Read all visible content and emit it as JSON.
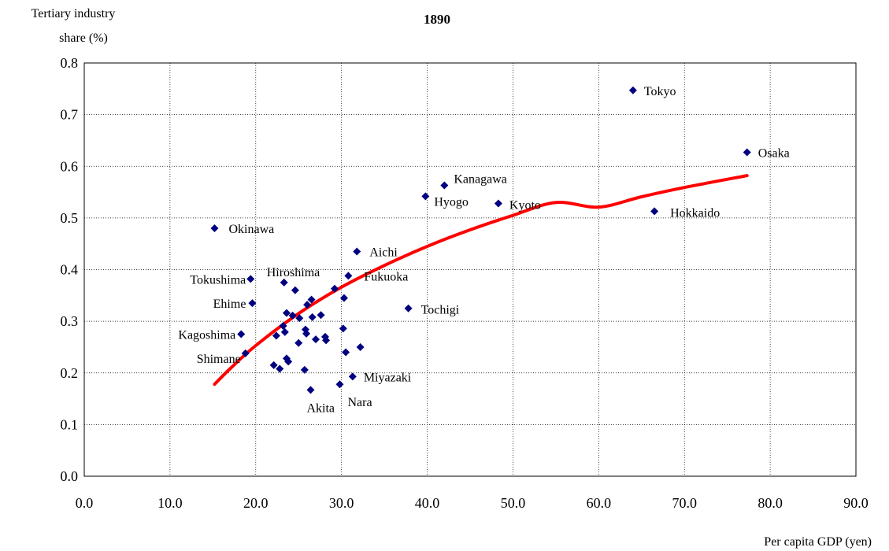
{
  "chart_data": {
    "type": "scatter",
    "title": "1890",
    "ylabel_lines": [
      "Tertiary industry",
      "share (%)"
    ],
    "xlabel": "Per capita GDP (yen)",
    "xlim": [
      0,
      90
    ],
    "ylim": [
      0,
      0.8
    ],
    "xticks": [
      "0.0",
      "10.0",
      "20.0",
      "30.0",
      "40.0",
      "50.0",
      "60.0",
      "70.0",
      "80.0",
      "90.0"
    ],
    "yticks": [
      "0.0",
      "0.1",
      "0.2",
      "0.3",
      "0.4",
      "0.5",
      "0.6",
      "0.7",
      "0.8"
    ],
    "grid": true,
    "marker_color": "#000080",
    "trend_color": "#ff0000",
    "trend_label": "",
    "points": [
      {
        "x": 64.0,
        "y": 0.747,
        "label": "Tokyo"
      },
      {
        "x": 77.3,
        "y": 0.627,
        "label": "Osaka"
      },
      {
        "x": 42.0,
        "y": 0.563,
        "label": "Kanagawa"
      },
      {
        "x": 39.8,
        "y": 0.542,
        "label": "Hyogo"
      },
      {
        "x": 48.3,
        "y": 0.528,
        "label": "Kyoto"
      },
      {
        "x": 66.5,
        "y": 0.513,
        "label": "Hokkaido"
      },
      {
        "x": 15.2,
        "y": 0.48,
        "label": "Okinawa"
      },
      {
        "x": 31.8,
        "y": 0.435,
        "label": "Aichi"
      },
      {
        "x": 30.8,
        "y": 0.388,
        "label": "Fukuoka"
      },
      {
        "x": 23.3,
        "y": 0.375,
        "label": "Hiroshima"
      },
      {
        "x": 19.4,
        "y": 0.382,
        "label": "Tokushima"
      },
      {
        "x": 19.6,
        "y": 0.335,
        "label": "Ehime"
      },
      {
        "x": 37.8,
        "y": 0.325,
        "label": "Tochigi"
      },
      {
        "x": 18.3,
        "y": 0.275,
        "label": "Kagoshima"
      },
      {
        "x": 18.8,
        "y": 0.238,
        "label": "Shimane"
      },
      {
        "x": 31.3,
        "y": 0.193,
        "label": "Miyazaki"
      },
      {
        "x": 29.8,
        "y": 0.178,
        "label": "Nara"
      },
      {
        "x": 26.4,
        "y": 0.167,
        "label": "Akita"
      },
      {
        "x": 24.6,
        "y": 0.36,
        "label": ""
      },
      {
        "x": 29.2,
        "y": 0.363,
        "label": ""
      },
      {
        "x": 30.3,
        "y": 0.345,
        "label": ""
      },
      {
        "x": 26.5,
        "y": 0.342,
        "label": ""
      },
      {
        "x": 26.0,
        "y": 0.332,
        "label": ""
      },
      {
        "x": 23.6,
        "y": 0.316,
        "label": ""
      },
      {
        "x": 24.3,
        "y": 0.311,
        "label": ""
      },
      {
        "x": 25.1,
        "y": 0.306,
        "label": ""
      },
      {
        "x": 26.6,
        "y": 0.308,
        "label": ""
      },
      {
        "x": 27.6,
        "y": 0.312,
        "label": ""
      },
      {
        "x": 23.2,
        "y": 0.291,
        "label": ""
      },
      {
        "x": 25.8,
        "y": 0.284,
        "label": ""
      },
      {
        "x": 23.4,
        "y": 0.279,
        "label": ""
      },
      {
        "x": 25.9,
        "y": 0.276,
        "label": ""
      },
      {
        "x": 22.4,
        "y": 0.272,
        "label": ""
      },
      {
        "x": 28.1,
        "y": 0.27,
        "label": ""
      },
      {
        "x": 27.0,
        "y": 0.265,
        "label": ""
      },
      {
        "x": 28.2,
        "y": 0.263,
        "label": ""
      },
      {
        "x": 25.0,
        "y": 0.258,
        "label": ""
      },
      {
        "x": 30.2,
        "y": 0.286,
        "label": ""
      },
      {
        "x": 32.2,
        "y": 0.25,
        "label": ""
      },
      {
        "x": 30.5,
        "y": 0.24,
        "label": ""
      },
      {
        "x": 23.6,
        "y": 0.228,
        "label": ""
      },
      {
        "x": 23.8,
        "y": 0.222,
        "label": ""
      },
      {
        "x": 22.1,
        "y": 0.215,
        "label": ""
      },
      {
        "x": 22.8,
        "y": 0.208,
        "label": ""
      },
      {
        "x": 25.7,
        "y": 0.206,
        "label": ""
      }
    ],
    "trend": [
      [
        15.2,
        0.178
      ],
      [
        17,
        0.208
      ],
      [
        20,
        0.253
      ],
      [
        25,
        0.315
      ],
      [
        30,
        0.366
      ],
      [
        35,
        0.408
      ],
      [
        40,
        0.445
      ],
      [
        45,
        0.477
      ],
      [
        50,
        0.505
      ],
      [
        55,
        0.53
      ],
      [
        60,
        0.521
      ],
      [
        65,
        0.541
      ],
      [
        70,
        0.559
      ],
      [
        77.3,
        0.582
      ]
    ]
  }
}
